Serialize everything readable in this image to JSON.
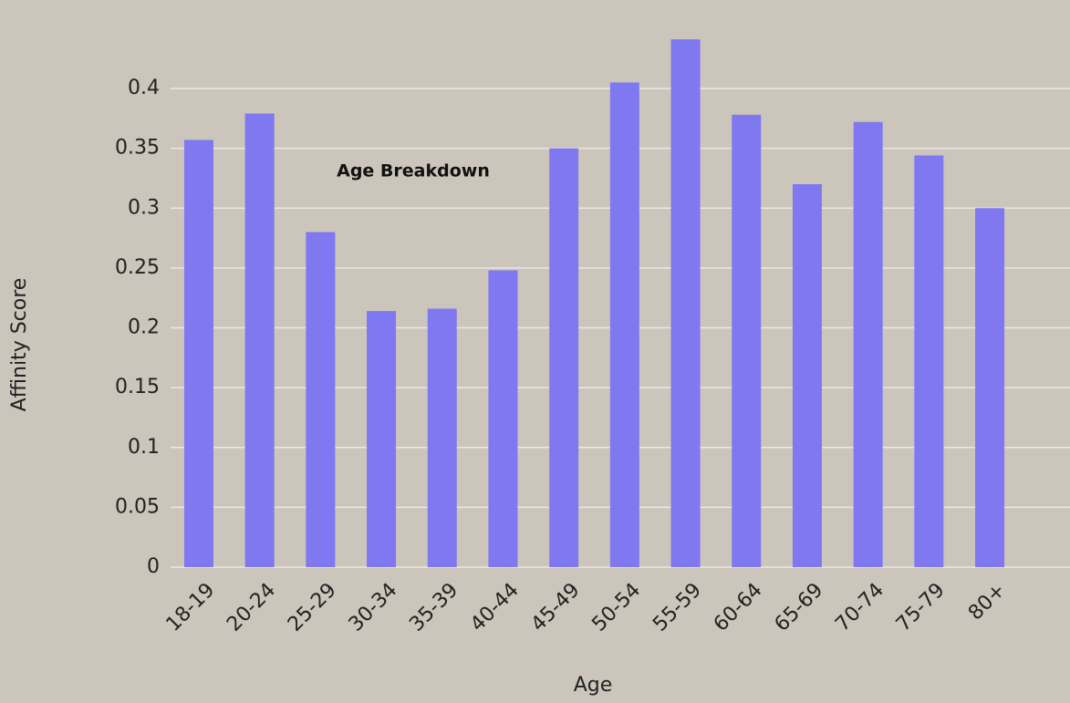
{
  "chart_data": {
    "type": "bar",
    "title": "Age Breakdown",
    "x_label": "Age",
    "y_label": "Affinity Score",
    "categories": [
      "18-19",
      "20-24",
      "25-29",
      "30-34",
      "35-39",
      "40-44",
      "45-49",
      "50-54",
      "55-59",
      "60-64",
      "65-69",
      "70-74",
      "75-79",
      "80+"
    ],
    "values": [
      0.357,
      0.379,
      0.28,
      0.214,
      0.216,
      0.248,
      0.35,
      0.405,
      0.441,
      0.378,
      0.32,
      0.372,
      0.344,
      0.3
    ],
    "color": "#7f78f0",
    "ylim": [
      0,
      0.45
    ],
    "yticks": [
      0,
      0.05,
      0.1,
      0.15,
      0.2,
      0.25,
      0.3,
      0.35,
      0.4
    ],
    "grid": true
  }
}
